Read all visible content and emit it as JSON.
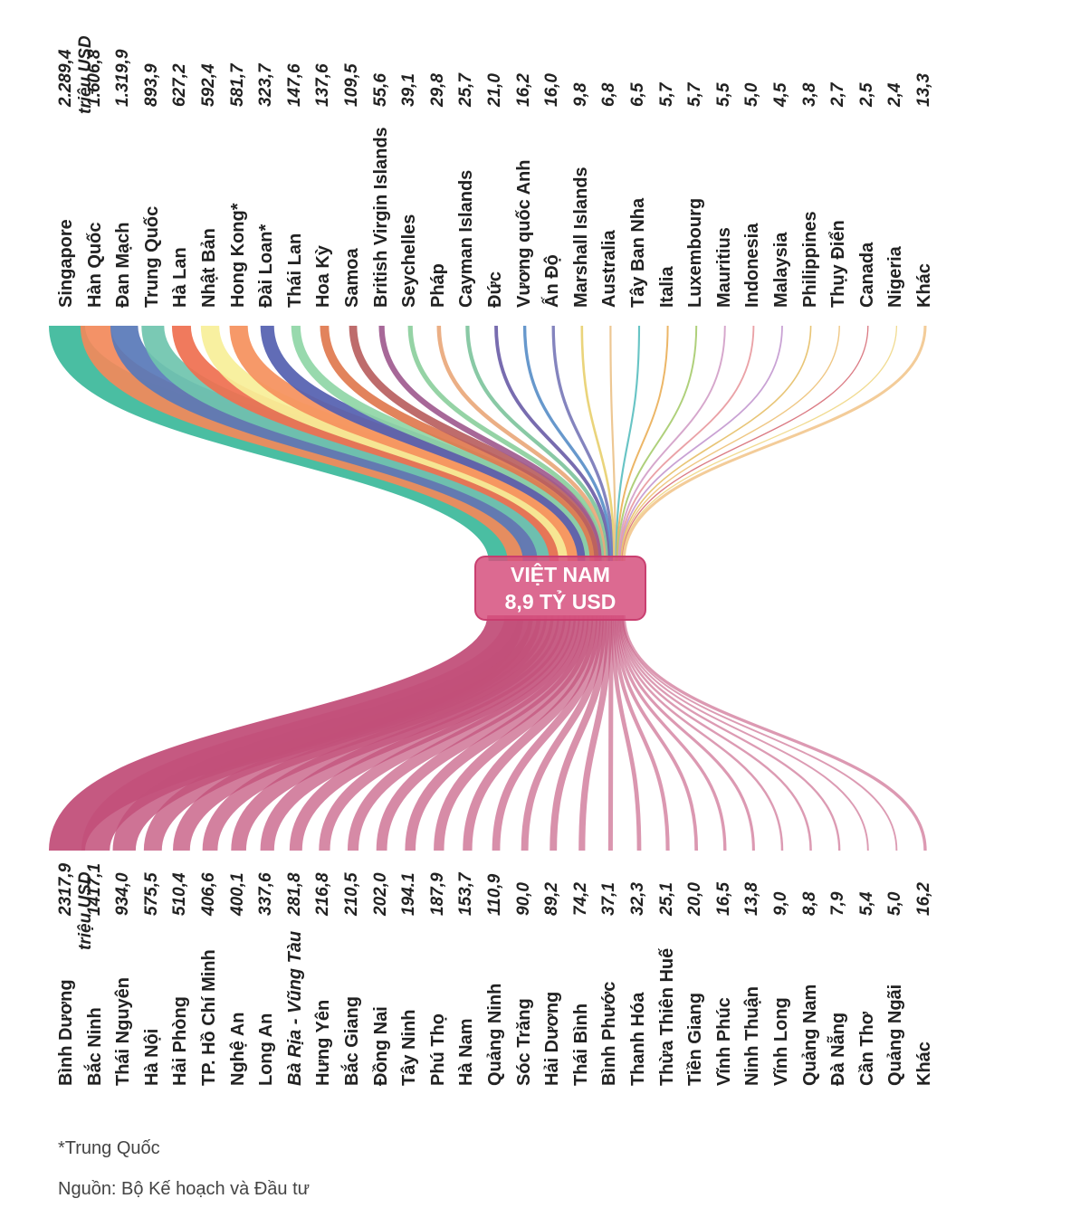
{
  "hub": {
    "line1": "VIỆT NAM",
    "line2": "8,9 TỶ USD",
    "color": "#d6507e"
  },
  "unit_top": "triệu USD",
  "unit_bottom": "triệu USD",
  "footnote": "*Trung Quốc",
  "source": "Nguồn: Bộ Kế hoạch và Đầu tư",
  "chart_data": {
    "type": "sankey",
    "sources": [
      {
        "name": "Singapore",
        "value": "2.289,4",
        "amount": 2289.4,
        "color": "#3bb99a"
      },
      {
        "name": "Hàn Quốc",
        "value": "1.606,8",
        "amount": 1606.8,
        "color": "#f2895a"
      },
      {
        "name": "Đan Mạch",
        "value": "1.319,9",
        "amount": 1319.9,
        "color": "#5878b8"
      },
      {
        "name": "Trung Quốc",
        "value": "893,9",
        "amount": 893.9,
        "color": "#6fc4ae"
      },
      {
        "name": "Hà Lan",
        "value": "627,2",
        "amount": 627.2,
        "color": "#ef6f4f"
      },
      {
        "name": "Nhật Bản",
        "value": "592,4",
        "amount": 592.4,
        "color": "#f7ef98"
      },
      {
        "name": "Hong Kong*",
        "value": "581,7",
        "amount": 581.7,
        "color": "#f5905c"
      },
      {
        "name": "Đài Loan*",
        "value": "323,7",
        "amount": 323.7,
        "color": "#5460b0"
      },
      {
        "name": "Thái Lan",
        "value": "147,6",
        "amount": 147.6,
        "color": "#8fd6a6"
      },
      {
        "name": "Hoa Kỳ",
        "value": "137,6",
        "amount": 137.6,
        "color": "#e0784e"
      },
      {
        "name": "Samoa",
        "value": "109,5",
        "amount": 109.5,
        "color": "#b86060"
      },
      {
        "name": "British Virgin Islands",
        "value": "55,6",
        "amount": 55.6,
        "color": "#a05b8f"
      },
      {
        "name": "Seychelles",
        "value": "39,1",
        "amount": 39.1,
        "color": "#8ccf9d"
      },
      {
        "name": "Pháp",
        "value": "29,8",
        "amount": 29.8,
        "color": "#e9a87b"
      },
      {
        "name": "Cayman Islands",
        "value": "25,7",
        "amount": 25.7,
        "color": "#7fc49d"
      },
      {
        "name": "Đức",
        "value": "21,0",
        "amount": 21.0,
        "color": "#6d5fa8"
      },
      {
        "name": "Vương quốc Anh",
        "value": "16,2",
        "amount": 16.2,
        "color": "#5a8fc8"
      },
      {
        "name": "Ấn Độ",
        "value": "16,0",
        "amount": 16.0,
        "color": "#7a7ab8"
      },
      {
        "name": "Marshall Islands",
        "value": "9,8",
        "amount": 9.8,
        "color": "#e8d070"
      },
      {
        "name": "Australia",
        "value": "6,8",
        "amount": 6.8,
        "color": "#ecc28a"
      },
      {
        "name": "Tây Ban Nha",
        "value": "6,5",
        "amount": 6.5,
        "color": "#5bbfc0"
      },
      {
        "name": "Italia",
        "value": "5,7",
        "amount": 5.7,
        "color": "#eab05a"
      },
      {
        "name": "Luxembourg",
        "value": "5,7",
        "amount": 5.7,
        "color": "#a8cc70"
      },
      {
        "name": "Mauritius",
        "value": "5,5",
        "amount": 5.5,
        "color": "#d2a0c8"
      },
      {
        "name": "Indonesia",
        "value": "5,0",
        "amount": 5.0,
        "color": "#e89aa0"
      },
      {
        "name": "Malaysia",
        "value": "4,5",
        "amount": 4.5,
        "color": "#c49ad0"
      },
      {
        "name": "Philippines",
        "value": "3,8",
        "amount": 3.8,
        "color": "#e6c06a"
      },
      {
        "name": "Thụy Điển",
        "value": "2,7",
        "amount": 2.7,
        "color": "#eec27a"
      },
      {
        "name": "Canada",
        "value": "2,5",
        "amount": 2.5,
        "color": "#d8707a"
      },
      {
        "name": "Nigeria",
        "value": "2,4",
        "amount": 2.4,
        "color": "#f0d888"
      },
      {
        "name": "Khác",
        "value": "13,3",
        "amount": 13.3,
        "color": "#f2c890"
      }
    ],
    "targets": [
      {
        "name": "Bình Dương",
        "value": "2317,9",
        "amount": 2317.9
      },
      {
        "name": "Bắc Ninh",
        "value": "1417,1",
        "amount": 1417.1
      },
      {
        "name": "Thái Nguyên",
        "value": "934,0",
        "amount": 934.0
      },
      {
        "name": "Hà Nội",
        "value": "575,5",
        "amount": 575.5
      },
      {
        "name": "Hải Phòng",
        "value": "510,4",
        "amount": 510.4
      },
      {
        "name": "TP. Hồ Chí Minh",
        "value": "406,6",
        "amount": 406.6
      },
      {
        "name": "Nghệ An",
        "value": "400,1",
        "amount": 400.1
      },
      {
        "name": "Long An",
        "value": "337,6",
        "amount": 337.6
      },
      {
        "name": "Bà Rịa - Vũng Tàu",
        "value": "281,8",
        "amount": 281.8,
        "italic": true
      },
      {
        "name": "Hưng Yên",
        "value": "216,8",
        "amount": 216.8
      },
      {
        "name": "Bắc Giang",
        "value": "210,5",
        "amount": 210.5
      },
      {
        "name": "Đồng Nai",
        "value": "202,0",
        "amount": 202.0
      },
      {
        "name": "Tây Ninh",
        "value": "194.1",
        "amount": 194.1
      },
      {
        "name": "Phú Thọ",
        "value": "187,9",
        "amount": 187.9
      },
      {
        "name": "Hà Nam",
        "value": "153,7",
        "amount": 153.7
      },
      {
        "name": "Quảng Ninh",
        "value": "110,9",
        "amount": 110.9
      },
      {
        "name": "Sóc Trăng",
        "value": "90,0",
        "amount": 90.0
      },
      {
        "name": "Hải Dương",
        "value": "89,2",
        "amount": 89.2
      },
      {
        "name": "Thái Bình",
        "value": "74,2",
        "amount": 74.2
      },
      {
        "name": "Bình Phước",
        "value": "37,1",
        "amount": 37.1
      },
      {
        "name": "Thanh Hóa",
        "value": "32,3",
        "amount": 32.3
      },
      {
        "name": "Thừa Thiên Huế",
        "value": "25,1",
        "amount": 25.1
      },
      {
        "name": "Tiền Giang",
        "value": "20,0",
        "amount": 20.0
      },
      {
        "name": "Vĩnh Phúc",
        "value": "16,5",
        "amount": 16.5
      },
      {
        "name": "Ninh Thuận",
        "value": "13,8",
        "amount": 13.8
      },
      {
        "name": "Vĩnh Long",
        "value": "9,0",
        "amount": 9.0
      },
      {
        "name": "Quảng Nam",
        "value": "8,8",
        "amount": 8.8
      },
      {
        "name": "Đà Nẵng",
        "value": "7,9",
        "amount": 7.9
      },
      {
        "name": "Cần Thơ",
        "value": "5,4",
        "amount": 5.4
      },
      {
        "name": "Quảng Ngãi",
        "value": "5,0",
        "amount": 5.0
      },
      {
        "name": "Khác",
        "value": "16,2",
        "amount": 16.2
      }
    ],
    "target_color": "#c2507a"
  }
}
